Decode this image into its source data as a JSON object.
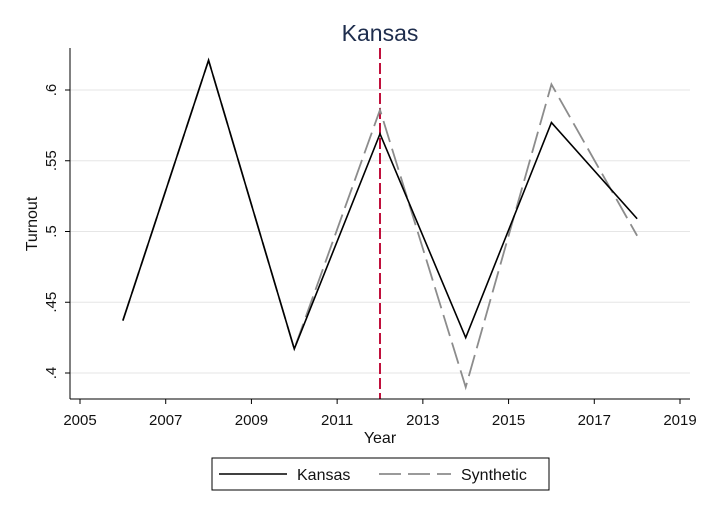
{
  "chart_data": {
    "type": "line",
    "title": "Kansas",
    "xlabel": "Year",
    "ylabel": "Turnout",
    "xlim": [
      2005,
      2019
    ],
    "ylim": [
      0.38,
      0.63
    ],
    "xticks": [
      2005,
      2007,
      2009,
      2011,
      2013,
      2015,
      2017,
      2019
    ],
    "yticks": [
      0.4,
      0.45,
      0.5,
      0.55,
      0.6
    ],
    "ytick_labels": [
      ".4",
      ".45",
      ".5",
      ".55",
      ".6"
    ],
    "x": [
      2006,
      2008,
      2010,
      2012,
      2014,
      2016,
      2018
    ],
    "series": [
      {
        "name": "Kansas",
        "style": "solid",
        "color": "#000000",
        "values": [
          0.437,
          0.621,
          0.417,
          0.569,
          0.425,
          0.577,
          0.509
        ]
      },
      {
        "name": "Synthetic",
        "style": "dashed",
        "color": "#8c8c8c",
        "values": [
          0.437,
          0.621,
          0.417,
          0.586,
          0.39,
          0.604,
          0.497
        ]
      }
    ],
    "reference_line": {
      "x": 2012,
      "color": "#c0103c",
      "style": "dashed"
    },
    "grid": "horizontal",
    "legend_position": "bottom"
  }
}
